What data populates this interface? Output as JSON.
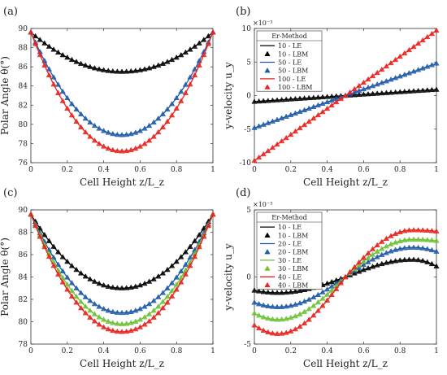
{
  "chart_data": [
    {
      "panel_label": "(a)",
      "type": "line",
      "xlabel": "Cell Height z/L_z",
      "ylabel": "Polar Angle θ(°)",
      "xlim": [
        0,
        1
      ],
      "ylim": [
        76,
        90
      ],
      "xticks": [
        "0",
        "0.2",
        "0.4",
        "0.6",
        "0.8",
        "1"
      ],
      "yticks": [
        "76",
        "78",
        "80",
        "82",
        "84",
        "86",
        "88",
        "90"
      ],
      "grid": false,
      "legend": null,
      "profile": "arc",
      "series": [
        {
          "name": "10 - LE",
          "style": "line",
          "color": "#000000",
          "endpoint": 89.6,
          "midpoint": 85.5
        },
        {
          "name": "10 - LBM",
          "style": "markers",
          "color": "#000000",
          "endpoint": 89.6,
          "midpoint": 85.5
        },
        {
          "name": "50 - LE",
          "style": "line",
          "color": "#1f5aa8",
          "endpoint": 89.6,
          "midpoint": 78.9
        },
        {
          "name": "50 - LBM",
          "style": "markers",
          "color": "#1f5aa8",
          "endpoint": 89.6,
          "midpoint": 78.9
        },
        {
          "name": "100 - LE",
          "style": "line",
          "color": "#e8231f",
          "endpoint": 89.6,
          "midpoint": 77.2
        },
        {
          "name": "100 - LBM",
          "style": "markers",
          "color": "#e8231f",
          "endpoint": 89.6,
          "midpoint": 77.2
        }
      ]
    },
    {
      "panel_label": "(b)",
      "type": "line",
      "xlabel": "Cell Height z/L_z",
      "ylabel": "y-velocity u_y",
      "xlim": [
        0,
        1
      ],
      "ylim": [
        -10,
        10
      ],
      "exponent": "×10⁻³",
      "xticks": [
        "0",
        "0.2",
        "0.4",
        "0.6",
        "0.8",
        "1"
      ],
      "yticks": [
        "-10",
        "-5",
        "0",
        "5",
        "10"
      ],
      "grid": false,
      "legend": {
        "title": "Er-Method",
        "placement": "top-left"
      },
      "profile": "linear",
      "series": [
        {
          "name": "10 - LE",
          "style": "line",
          "color": "#000000",
          "at_z0": -0.9,
          "at_z1": 0.9
        },
        {
          "name": "10 - LBM",
          "style": "markers",
          "color": "#000000",
          "at_z0": -0.9,
          "at_z1": 0.9
        },
        {
          "name": "50 - LE",
          "style": "line",
          "color": "#1f5aa8",
          "at_z0": -4.8,
          "at_z1": 4.8
        },
        {
          "name": "50 - LBM",
          "style": "markers",
          "color": "#1f5aa8",
          "at_z0": -4.8,
          "at_z1": 4.8
        },
        {
          "name": "100 - LE",
          "style": "line",
          "color": "#e8231f",
          "at_z0": -9.7,
          "at_z1": 9.7
        },
        {
          "name": "100 - LBM",
          "style": "markers",
          "color": "#e8231f",
          "at_z0": -9.7,
          "at_z1": 9.7
        }
      ]
    },
    {
      "panel_label": "(c)",
      "type": "line",
      "xlabel": "Cell Height z/L_z",
      "ylabel": "Polar Angle θ(°)",
      "xlim": [
        0,
        1
      ],
      "ylim": [
        78,
        90
      ],
      "xticks": [
        "0",
        "0.2",
        "0.4",
        "0.6",
        "0.8",
        "1"
      ],
      "yticks": [
        "78",
        "80",
        "82",
        "84",
        "86",
        "88",
        "90"
      ],
      "grid": false,
      "legend": null,
      "profile": "arc",
      "series": [
        {
          "name": "10 - LE",
          "style": "line",
          "color": "#000000",
          "endpoint": 89.6,
          "midpoint": 83.0
        },
        {
          "name": "10 - LBM",
          "style": "markers",
          "color": "#000000",
          "endpoint": 89.6,
          "midpoint": 83.0
        },
        {
          "name": "20 - LE",
          "style": "line",
          "color": "#1f5aa8",
          "endpoint": 89.6,
          "midpoint": 80.8
        },
        {
          "name": "20 - LBM",
          "style": "markers",
          "color": "#1f5aa8",
          "endpoint": 89.6,
          "midpoint": 80.8
        },
        {
          "name": "30 - LE",
          "style": "line",
          "color": "#6cc235",
          "endpoint": 89.6,
          "midpoint": 79.8
        },
        {
          "name": "30 - LBM",
          "style": "markers",
          "color": "#6cc235",
          "endpoint": 89.6,
          "midpoint": 79.8
        },
        {
          "name": "40 - LE",
          "style": "line",
          "color": "#e8231f",
          "endpoint": 89.6,
          "midpoint": 79.1
        },
        {
          "name": "40 - LBM",
          "style": "markers",
          "color": "#e8231f",
          "endpoint": 89.6,
          "midpoint": 79.1
        }
      ]
    },
    {
      "panel_label": "(d)",
      "type": "line",
      "xlabel": "Cell Height z/L_z",
      "ylabel": "y-velocity u_y",
      "xlim": [
        0,
        1
      ],
      "ylim": [
        -5,
        5
      ],
      "exponent": "×10⁻³",
      "xticks": [
        "0",
        "0.2",
        "0.4",
        "0.6",
        "0.8",
        "1"
      ],
      "yticks": [
        "-5",
        "0",
        "5"
      ],
      "grid": false,
      "legend": {
        "title": "Er-Method",
        "placement": "top-left"
      },
      "profile": "wave",
      "series": [
        {
          "name": "10 - LE",
          "style": "line",
          "color": "#000000",
          "at_z0": -1.0,
          "peak": 1.3,
          "at_z1": 0.8
        },
        {
          "name": "10 - LBM",
          "style": "markers",
          "color": "#000000",
          "at_z0": -1.0,
          "peak": 1.3,
          "at_z1": 0.8
        },
        {
          "name": "20 - LE",
          "style": "line",
          "color": "#1f5aa8",
          "at_z0": -1.9,
          "peak": 2.2,
          "at_z1": 1.9
        },
        {
          "name": "20 - LBM",
          "style": "markers",
          "color": "#1f5aa8",
          "at_z0": -1.9,
          "peak": 2.2,
          "at_z1": 1.9
        },
        {
          "name": "30 - LE",
          "style": "line",
          "color": "#6cc235",
          "at_z0": -2.7,
          "peak": 2.8,
          "at_z1": 2.7
        },
        {
          "name": "30 - LBM",
          "style": "markers",
          "color": "#6cc235",
          "at_z0": -2.7,
          "peak": 2.8,
          "at_z1": 2.7
        },
        {
          "name": "40 - LE",
          "style": "line",
          "color": "#e8231f",
          "at_z0": -3.6,
          "peak": 3.5,
          "at_z1": 3.4
        },
        {
          "name": "40 - LBM",
          "style": "markers",
          "color": "#e8231f",
          "at_z0": -3.6,
          "peak": 3.5,
          "at_z1": 3.4
        }
      ]
    }
  ]
}
